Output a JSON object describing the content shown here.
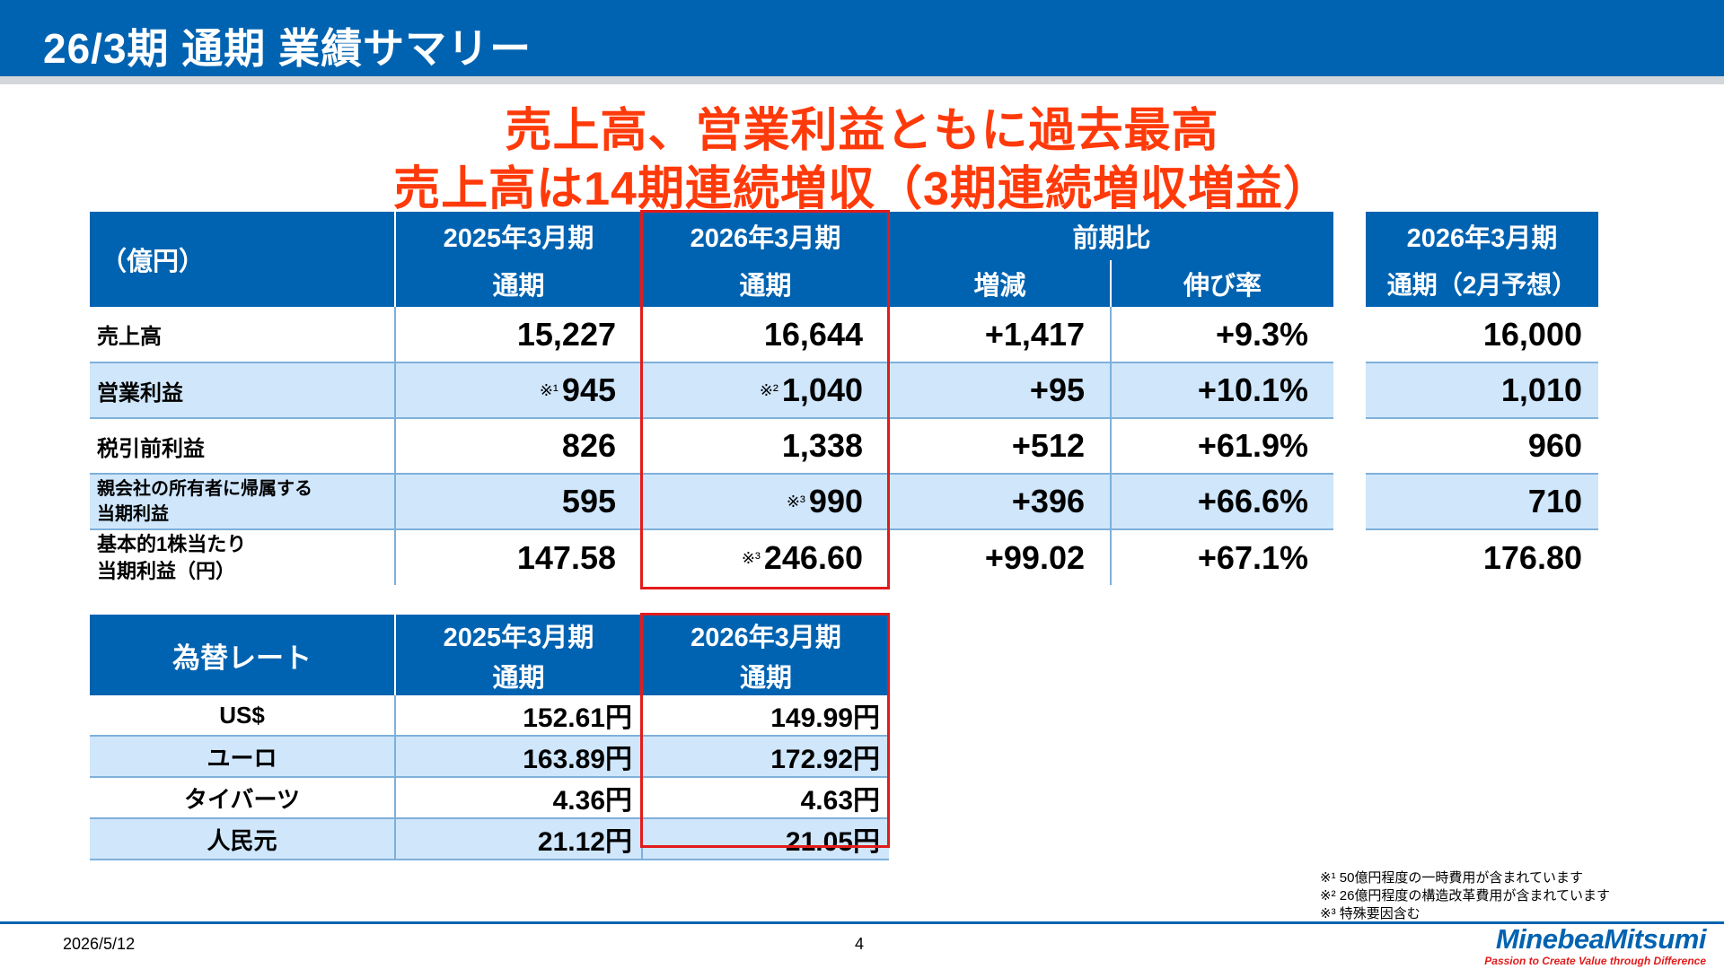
{
  "header": {
    "title": "26/3期 通期 業績サマリー"
  },
  "headline": {
    "line1": "売上高、営業利益ともに過去最高",
    "line2": "売上高は14期連続増収（3期連続増収増益）"
  },
  "main_table": {
    "unit_label": "（億円）",
    "col_fy2025": "2025年3月期",
    "col_fy2025_sub": "通期",
    "col_fy2026": "2026年3月期",
    "col_fy2026_sub": "通期",
    "col_yoy": "前期比",
    "col_change": "増減",
    "col_growth": "伸び率",
    "rows": [
      {
        "label": "売上高",
        "label2": "",
        "fy2025_note": "",
        "fy2025": "15,227",
        "fy2026_note": "",
        "fy2026": "16,644",
        "change": "+1,417",
        "growth": "+9.3%"
      },
      {
        "label": "営業利益",
        "label2": "",
        "fy2025_note": "※¹",
        "fy2025": "945",
        "fy2026_note": "※²",
        "fy2026": "1,040",
        "change": "+95",
        "growth": "+10.1%"
      },
      {
        "label": "税引前利益",
        "label2": "",
        "fy2025_note": "",
        "fy2025": "826",
        "fy2026_note": "",
        "fy2026": "1,338",
        "change": "+512",
        "growth": "+61.9%"
      },
      {
        "label": "親会社の所有者に帰属する",
        "label2": "当期利益",
        "fy2025_note": "",
        "fy2025": "595",
        "fy2026_note": "※³",
        "fy2026": "990",
        "change": "+396",
        "growth": "+66.6%"
      },
      {
        "label": "基本的1株当たり",
        "label2": "当期利益（円）",
        "fy2025_note": "",
        "fy2025": "147.58",
        "fy2026_note": "※³",
        "fy2026": "246.60",
        "change": "+99.02",
        "growth": "+67.1%"
      }
    ]
  },
  "forecast_table": {
    "col_title": "2026年3月期",
    "col_sub": "通期（2月予想）",
    "values": [
      "16,000",
      "1,010",
      "960",
      "710",
      "176.80"
    ]
  },
  "fx_table": {
    "label": "為替レート",
    "col_fy2025": "2025年3月期",
    "col_fy2025_sub": "通期",
    "col_fy2026": "2026年3月期",
    "col_fy2026_sub": "通期",
    "rows": [
      {
        "currency": "US$",
        "fy2025": "152.61円",
        "fy2026": "149.99円"
      },
      {
        "currency": "ユーロ",
        "fy2025": "163.89円",
        "fy2026": "172.92円"
      },
      {
        "currency": "タイバーツ",
        "fy2025": "4.36円",
        "fy2026": "4.63円"
      },
      {
        "currency": "人民元",
        "fy2025": "21.12円",
        "fy2026": "21.05円"
      }
    ]
  },
  "footnotes": [
    "※¹ 50億円程度の一時費用が含まれています",
    "※² 26億円程度の構造改革費用が含まれています",
    "※³ 特殊要因含む"
  ],
  "footer": {
    "date": "2026/5/12",
    "page": "4",
    "logo_name": "MinebeaMitsumi",
    "logo_tagline": "Passion to Create Value through Difference"
  },
  "colors": {
    "brand_blue": "#0063b1",
    "headline_red": "#ff3a0a",
    "highlight_box_red": "#e21b1b",
    "row_tint": "#cfe6fb"
  }
}
